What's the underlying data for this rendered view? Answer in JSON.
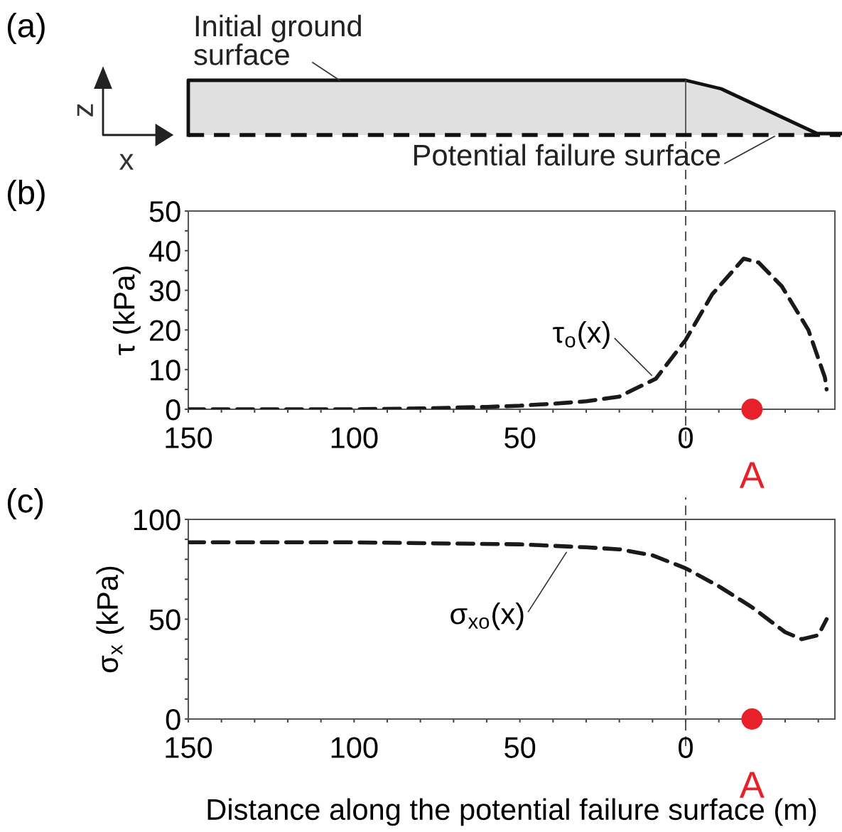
{
  "chart_data": [
    {
      "type": "other",
      "title": "(a)",
      "annotations": [
        "Initial ground\nsurface",
        "Potential failure surface",
        "z",
        "x"
      ]
    },
    {
      "type": "line",
      "title": "(b)",
      "ylabel": "τ (kPa)",
      "xlim": [
        150,
        -45
      ],
      "ylim": [
        0,
        50
      ],
      "xticks": [
        150,
        {
          "value": 140,
          "label": null
        },
        {
          "value": 130,
          "label": null
        },
        {
          "value": 120,
          "label": null
        },
        {
          "value": 110,
          "label": null
        },
        100,
        {
          "value": 90,
          "label": null
        },
        {
          "value": 80,
          "label": null
        },
        {
          "value": 70,
          "label": null
        },
        {
          "value": 60,
          "label": null
        },
        50,
        {
          "value": 40,
          "label": null
        },
        {
          "value": 30,
          "label": null
        },
        {
          "value": 20,
          "label": null
        },
        {
          "value": 10,
          "label": null
        },
        0,
        {
          "value": -10,
          "label": null
        },
        {
          "value": -20,
          "label": null
        },
        {
          "value": -30,
          "label": null
        },
        {
          "value": -40,
          "label": null
        }
      ],
      "yticks": [
        0,
        {
          "value": 5,
          "label": null
        },
        10,
        {
          "value": 15,
          "label": null
        },
        20,
        {
          "value": 25,
          "label": null
        },
        30,
        {
          "value": 35,
          "label": null
        },
        40,
        {
          "value": 45,
          "label": null
        },
        50
      ],
      "line_style": "dashed",
      "series": [
        {
          "type": "line",
          "color": "#1a1a1a",
          "x": [
            150,
            120,
            100,
            80,
            60,
            50,
            40,
            30,
            20,
            9,
            0,
            -8,
            -17.5,
            -22,
            -29,
            -37,
            -42,
            -42.5
          ],
          "values": [
            0,
            0,
            0,
            0.2,
            0.6,
            0.9,
            1.4,
            2,
            3.2,
            7.7,
            17.5,
            29,
            38,
            37,
            31,
            20,
            8,
            5
          ]
        },
        {
          "type": "scatter",
          "name": "A",
          "color": "#e8202a",
          "marker": "circle",
          "x": [
            -20
          ],
          "values": [
            0
          ]
        }
      ],
      "ref_lines": [
        {
          "axis": "x",
          "value": 0,
          "line_style": "dashed",
          "color": "#333333"
        }
      ],
      "annotations": [
        {
          "text": "τ$_{o}$(x)",
          "x": 9,
          "y": 7.5
        }
      ]
    },
    {
      "type": "line",
      "title": "(c)",
      "ylabel": "σ$_{x}$ (kPa)",
      "xlabel": "Distance along the potential failure surface (m)",
      "xlim": [
        150,
        -45
      ],
      "ylim": [
        0,
        100
      ],
      "xticks": [
        150,
        {
          "value": 140,
          "label": null
        },
        {
          "value": 130,
          "label": null
        },
        {
          "value": 120,
          "label": null
        },
        {
          "value": 110,
          "label": null
        },
        100,
        {
          "value": 90,
          "label": null
        },
        {
          "value": 80,
          "label": null
        },
        {
          "value": 70,
          "label": null
        },
        {
          "value": 60,
          "label": null
        },
        50,
        {
          "value": 40,
          "label": null
        },
        {
          "value": 30,
          "label": null
        },
        {
          "value": 20,
          "label": null
        },
        {
          "value": 10,
          "label": null
        },
        0,
        {
          "value": -10,
          "label": null
        },
        {
          "value": -20,
          "label": null
        },
        {
          "value": -30,
          "label": null
        },
        {
          "value": -40,
          "label": null
        }
      ],
      "yticks": [
        0,
        {
          "value": 10,
          "label": null
        },
        {
          "value": 20,
          "label": null
        },
        {
          "value": 30,
          "label": null
        },
        {
          "value": 40,
          "label": null
        },
        50,
        {
          "value": 60,
          "label": null
        },
        {
          "value": 70,
          "label": null
        },
        {
          "value": 80,
          "label": null
        },
        {
          "value": 90,
          "label": null
        },
        100
      ],
      "line_style": "dashed",
      "series": [
        {
          "type": "line",
          "color": "#1a1a1a",
          "x": [
            150,
            100,
            50,
            30,
            20,
            10,
            0,
            -10,
            -20,
            -30,
            -35,
            -40,
            -42.5
          ],
          "values": [
            88.5,
            88.5,
            87.5,
            86,
            85,
            82,
            75.5,
            66.5,
            56,
            43.5,
            40,
            42,
            50
          ]
        },
        {
          "type": "scatter",
          "name": "A",
          "color": "#e8202a",
          "marker": "circle",
          "x": [
            -20
          ],
          "values": [
            0
          ]
        }
      ],
      "ref_lines": [
        {
          "axis": "x",
          "value": 0,
          "line_style": "dashed",
          "color": "#333333"
        }
      ],
      "annotations": [
        {
          "text": "σ$_{xo}$(x)",
          "x": 35,
          "y": 86
        }
      ]
    }
  ]
}
